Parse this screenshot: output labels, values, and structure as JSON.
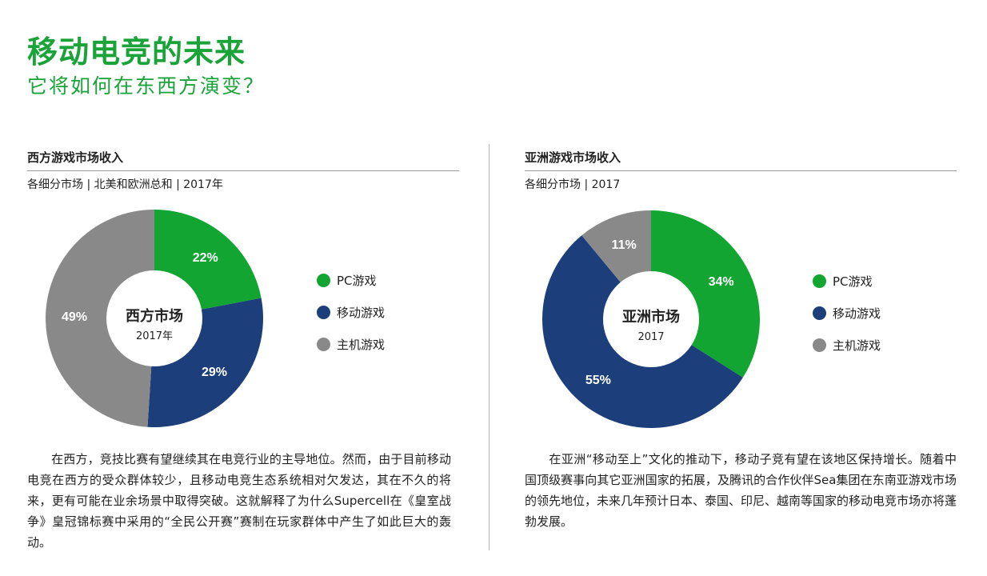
{
  "header": {
    "title": "移动电竞的未来",
    "subtitle": "它将如何在东西方演变？"
  },
  "colors": {
    "pc": "#12a531",
    "mobile": "#1c3f7c",
    "console": "#898989",
    "accent": "#1aa339"
  },
  "legend": [
    {
      "label": "PC游戏",
      "color": "#12a531"
    },
    {
      "label": "移动游戏",
      "color": "#1c3f7c"
    },
    {
      "label": "主机游戏",
      "color": "#898989"
    }
  ],
  "west": {
    "title": "西方游戏市场收入",
    "subtitle": "各细分市场 | 北美和欧洲总和 | 2017年",
    "center_title": "西方市场",
    "center_sub": "2017年",
    "paragraph": "在西方，竞技比赛有望继续其在电竞行业的主导地位。然而，由于目前移动电竞在西方的受众群体较少，且移动电竞生态系统相对欠发达，其在不久的将来，更有可能在业余场景中取得突破。这就解释了为什么Supercell在《皇室战争》皇冠锦标赛中采用的“全民公开赛”赛制在玩家群体中产生了如此巨大的轰动。"
  },
  "asia": {
    "title": "亚洲游戏市场收入",
    "subtitle": "各细分市场 | 2017",
    "center_title": "亚洲市场",
    "center_sub": "2017",
    "paragraph": "在亚洲“移动至上”文化的推动下，移动子竞有望在该地区保持增长。随着中国顶级赛事向其它亚洲国家的拓展，及腾讯的合作伙伴Sea集团在东南亚游戏市场的领先地位，未来几年预计日本、泰国、印尼、越南等国家的移动电竞市场亦将蓬勃发展。"
  },
  "chart_data": [
    {
      "type": "pie",
      "categories": [
        "PC游戏",
        "移动游戏",
        "主机游戏"
      ],
      "values": [
        22,
        29,
        49
      ],
      "labels": [
        "22%",
        "29%",
        "49%"
      ],
      "title": "西方游戏市场收入",
      "subtitle": "各细分市场 | 北美和欧洲总和 | 2017年",
      "legend": "right"
    },
    {
      "type": "pie",
      "categories": [
        "PC游戏",
        "移动游戏",
        "主机游戏"
      ],
      "values": [
        34,
        55,
        11
      ],
      "labels": [
        "34%",
        "55%",
        "11%"
      ],
      "title": "亚洲游戏市场收入",
      "subtitle": "各细分市场 | 2017",
      "legend": "right"
    }
  ]
}
